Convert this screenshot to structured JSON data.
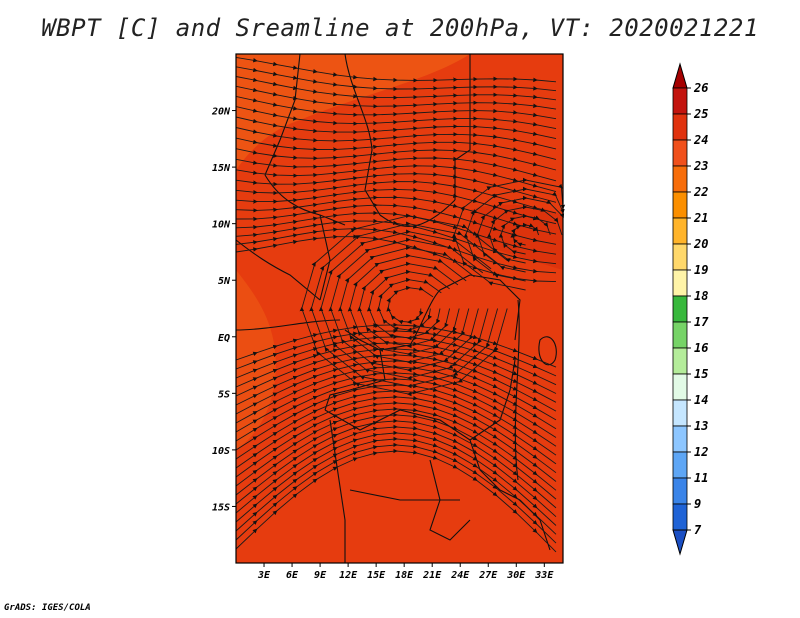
{
  "figure": {
    "title": "WBPT [C] and Sreamline at 200hPa, VT: 2020021221",
    "credit": "GrADS: IGES/COLA"
  },
  "map": {
    "lat_range": [
      -20,
      25
    ],
    "lon_range": [
      0,
      35
    ],
    "lat_ticks": [
      {
        "value": 20,
        "label": "20N"
      },
      {
        "value": 15,
        "label": "15N"
      },
      {
        "value": 10,
        "label": "10N"
      },
      {
        "value": 5,
        "label": "5N"
      },
      {
        "value": 0,
        "label": "EQ"
      },
      {
        "value": -5,
        "label": "5S"
      },
      {
        "value": -10,
        "label": "10S"
      },
      {
        "value": -15,
        "label": "15S"
      }
    ],
    "lon_ticks": [
      {
        "value": 3,
        "label": "3E"
      },
      {
        "value": 6,
        "label": "6E"
      },
      {
        "value": 9,
        "label": "9E"
      },
      {
        "value": 12,
        "label": "12E"
      },
      {
        "value": 15,
        "label": "15E"
      },
      {
        "value": 18,
        "label": "18E"
      },
      {
        "value": 21,
        "label": "21E"
      },
      {
        "value": 24,
        "label": "24E"
      },
      {
        "value": 27,
        "label": "27E"
      },
      {
        "value": 30,
        "label": "30E"
      },
      {
        "value": 33,
        "label": "33E"
      }
    ],
    "field_colors": {
      "base": "#e63c0f",
      "warm_zone": "#ef5a14",
      "cool_zone": "#d82f0b"
    }
  },
  "colorbar": {
    "levels": [
      "26",
      "25",
      "24",
      "23",
      "22",
      "21",
      "20",
      "19",
      "18",
      "17",
      "16",
      "15",
      "14",
      "13",
      "12",
      "11",
      "9",
      "7"
    ],
    "colors": [
      "#a50000",
      "#c3140e",
      "#e0320e",
      "#f0501b",
      "#f76d0a",
      "#fb8f00",
      "#ffb42a",
      "#ffd86b",
      "#fff4a8",
      "#38b83c",
      "#76d367",
      "#b4ec9a",
      "#e2fae6",
      "#c5e6ff",
      "#8dc6ff",
      "#5ea6f5",
      "#3a84e8",
      "#1f63d6",
      "#1a4fc4"
    ]
  }
}
